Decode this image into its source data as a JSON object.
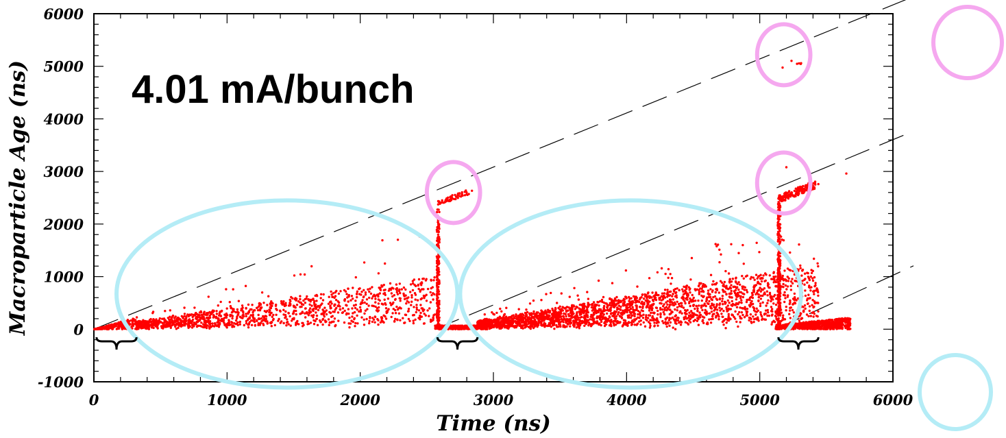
{
  "chart_data": {
    "type": "scatter",
    "title": "",
    "xlabel": "Time (ns)",
    "ylabel": "Macroparticle Age (ns)",
    "xlim": [
      0,
      6000
    ],
    "ylim": [
      -1000,
      6000
    ],
    "x_ticks": [
      "0",
      "1000",
      "2000",
      "3000",
      "4000",
      "5000",
      "6000"
    ],
    "y_ticks": [
      "-1000",
      "0",
      "1000",
      "2000",
      "3000",
      "4000",
      "5000",
      "6000"
    ],
    "annotation": "4.01 mA/bunch",
    "point_color": "#ff0000",
    "reference_lines": [
      {
        "x": [
          0,
          6000
        ],
        "y": [
          0,
          6000
        ]
      },
      {
        "x": [
          2560,
          6000
        ],
        "y": [
          0,
          3440
        ]
      },
      {
        "x": [
          5120,
          6000
        ],
        "y": [
          0,
          880
        ]
      }
    ],
    "bunch_train_markers": [
      {
        "x": [
          20,
          320
        ]
      },
      {
        "x": [
          2580,
          2880
        ]
      },
      {
        "x": [
          5140,
          5440
        ]
      }
    ],
    "bunch_train_color": "#000000",
    "highlight_ellipses": [
      {
        "color": "#f5a8ef",
        "center": [
          2700,
          2600
        ],
        "radius": [
          200,
          580
        ]
      },
      {
        "color": "#f5a8ef",
        "center": [
          5180,
          5220
        ],
        "radius": [
          200,
          580
        ]
      },
      {
        "color": "#f5a8ef",
        "center": [
          5180,
          2780
        ],
        "radius": [
          200,
          580
        ]
      },
      {
        "color": "#b4ecf6",
        "center": [
          1450,
          670
        ],
        "radius": [
          1280,
          1780
        ]
      },
      {
        "color": "#b4ecf6",
        "center": [
          4030,
          670
        ],
        "radius": [
          1280,
          1780
        ]
      }
    ],
    "legend_markers": [
      {
        "color": "#f5a8ef",
        "shape": "circle"
      },
      {
        "color": "#b4ecf6",
        "shape": "circle"
      }
    ],
    "clusters": [
      {
        "desc": "first train ramp",
        "x": [
          0,
          320
        ],
        "y_max_slope": 1.0,
        "density": "high"
      },
      {
        "desc": "gap cloud 1",
        "x": [
          320,
          2560
        ],
        "density": "decaying"
      },
      {
        "desc": "second train base",
        "x": [
          2560,
          2880
        ],
        "y": [
          0,
          60
        ]
      },
      {
        "desc": "old particles at train 2",
        "x": [
          2580,
          2840
        ],
        "y": [
          2350,
          2650
        ]
      },
      {
        "desc": "gap cloud 2",
        "x": [
          2880,
          5120
        ],
        "density": "decaying"
      },
      {
        "desc": "third train base",
        "x": [
          5120,
          5680
        ],
        "y": [
          0,
          200
        ]
      },
      {
        "desc": "old particles at train 3 (age ~2500)",
        "x": [
          5140,
          5420
        ],
        "y": [
          2380,
          2760
        ]
      },
      {
        "desc": "old particles at train 3 (age ~5000)",
        "x": [
          5140,
          5360
        ],
        "y": [
          4900,
          5160
        ]
      }
    ]
  }
}
